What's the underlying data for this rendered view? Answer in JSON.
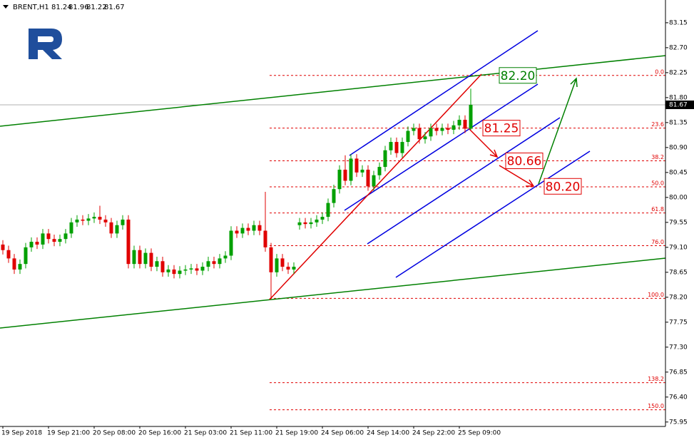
{
  "chart_data": {
    "type": "candlestick",
    "title": "BRENT,H1",
    "categories": [
      "19 Sep 2018",
      null,
      null,
      null,
      null,
      null,
      null,
      null,
      "19 Sep 21:00",
      null,
      null,
      null,
      null,
      null,
      null,
      null,
      "20 Sep 08:00",
      null,
      null,
      null,
      null,
      null,
      null,
      null,
      "20 Sep 16:00",
      null,
      null,
      null,
      null,
      null,
      null,
      null,
      "21 Sep 03:00",
      null,
      null,
      null,
      null,
      null,
      null,
      null,
      "21 Sep 11:00",
      null,
      null,
      null,
      null,
      null,
      null,
      null,
      "21 Sep 19:00",
      null,
      null,
      null,
      null,
      null,
      null,
      null,
      "24 Sep 06:00",
      null,
      null,
      null,
      null,
      null,
      null,
      null,
      "24 Sep 14:00",
      null,
      null,
      null,
      null,
      null,
      null,
      null,
      "24 Sep 22:00",
      null,
      null,
      null,
      null,
      null,
      null,
      null,
      "25 Sep 09:00",
      null,
      null
    ],
    "open": [
      79.15,
      79.05,
      78.9,
      78.7,
      78.8,
      79.1,
      79.2,
      79.15,
      79.35,
      79.25,
      79.2,
      79.25,
      79.35,
      79.55,
      79.6,
      79.58,
      79.62,
      79.65,
      79.6,
      79.55,
      79.35,
      79.5,
      79.6,
      78.8,
      79.05,
      78.8,
      79.0,
      78.75,
      78.85,
      78.65,
      78.7,
      78.62,
      78.68,
      78.7,
      78.72,
      78.68,
      78.75,
      78.85,
      78.8,
      78.9,
      78.95,
      79.4,
      79.35,
      79.45,
      79.4,
      79.5,
      79.4,
      79.1,
      78.65,
      78.9,
      78.75,
      78.7,
      79.5,
      79.55,
      79.52,
      79.55,
      79.6,
      79.65,
      79.9,
      80.15,
      80.5,
      80.3,
      80.7,
      80.45,
      80.5,
      80.2,
      80.4,
      80.55,
      80.85,
      81.0,
      80.8,
      81.0,
      81.2,
      81.25,
      81.05,
      81.1,
      81.25,
      81.2,
      81.25,
      81.22,
      81.3,
      81.4,
      81.24
    ],
    "high": [
      79.23,
      79.13,
      78.98,
      78.88,
      79.18,
      79.28,
      79.28,
      79.43,
      79.43,
      79.33,
      79.33,
      79.43,
      79.63,
      79.68,
      79.68,
      79.7,
      79.73,
      79.85,
      79.68,
      79.63,
      79.58,
      79.68,
      79.68,
      79.13,
      79.13,
      79.08,
      79.08,
      78.93,
      78.93,
      78.78,
      78.78,
      78.76,
      78.78,
      78.8,
      78.8,
      78.83,
      78.93,
      78.93,
      78.98,
      79.03,
      79.48,
      79.48,
      79.53,
      79.53,
      79.58,
      79.58,
      80.1,
      79.18,
      78.98,
      78.98,
      78.83,
      78.83,
      79.63,
      79.63,
      79.63,
      79.68,
      79.73,
      79.98,
      80.23,
      80.58,
      80.76,
      80.78,
      80.78,
      80.58,
      80.58,
      80.48,
      80.63,
      80.93,
      81.08,
      81.08,
      81.08,
      81.28,
      81.33,
      81.33,
      81.18,
      81.33,
      81.33,
      81.33,
      81.33,
      81.38,
      81.48,
      81.48,
      81.96
    ],
    "low": [
      78.97,
      78.82,
      78.62,
      78.62,
      78.72,
      79.02,
      79.07,
      79.07,
      79.17,
      79.12,
      79.12,
      79.17,
      79.27,
      79.47,
      79.5,
      79.5,
      79.54,
      79.52,
      79.47,
      79.27,
      79.27,
      79.42,
      78.72,
      78.72,
      78.72,
      78.72,
      78.67,
      78.67,
      78.57,
      78.57,
      78.54,
      78.54,
      78.6,
      78.62,
      78.6,
      78.6,
      78.67,
      78.72,
      78.72,
      78.82,
      78.87,
      79.27,
      79.27,
      79.32,
      79.32,
      79.32,
      79.02,
      78.18,
      78.57,
      78.67,
      78.62,
      78.62,
      79.42,
      79.44,
      79.44,
      79.47,
      79.52,
      79.57,
      79.82,
      80.07,
      80.22,
      80.22,
      80.37,
      80.37,
      80.12,
      80.12,
      80.32,
      80.47,
      80.77,
      80.72,
      80.72,
      80.92,
      81.12,
      80.97,
      80.97,
      81.02,
      81.12,
      81.12,
      81.14,
      81.14,
      81.22,
      81.16,
      81.22
    ],
    "close": [
      79.05,
      78.9,
      78.7,
      78.8,
      79.1,
      79.2,
      79.15,
      79.35,
      79.25,
      79.2,
      79.25,
      79.35,
      79.55,
      79.6,
      79.58,
      79.62,
      79.65,
      79.6,
      79.55,
      79.35,
      79.5,
      79.6,
      78.8,
      79.05,
      78.8,
      79.0,
      78.75,
      78.85,
      78.65,
      78.7,
      78.62,
      78.68,
      78.7,
      78.72,
      78.68,
      78.75,
      78.85,
      78.8,
      78.9,
      78.95,
      79.4,
      79.35,
      79.45,
      79.4,
      79.5,
      79.4,
      79.1,
      78.65,
      78.9,
      78.75,
      78.7,
      78.75,
      79.55,
      79.52,
      79.55,
      79.6,
      79.65,
      79.9,
      80.15,
      80.5,
      80.3,
      80.7,
      80.45,
      80.5,
      80.2,
      80.4,
      80.55,
      80.85,
      81.0,
      80.8,
      81.0,
      81.2,
      81.25,
      81.05,
      81.1,
      81.25,
      81.2,
      81.25,
      81.22,
      81.3,
      81.4,
      81.24,
      81.67
    ],
    "up_color": "#00a000",
    "down_color": "#e00000",
    "ylim": [
      75.87,
      83.56
    ],
    "yticks": [
      83.15,
      {
        "value": 82.7,
        "label": "82.70"
      },
      82.25,
      {
        "value": 81.8,
        "label": "81.80"
      },
      81.35,
      {
        "value": 80.9,
        "label": "80.90"
      },
      80.45,
      {
        "value": 80.0,
        "label": "80.00"
      },
      79.55,
      {
        "value": 79.1,
        "label": "79.10"
      },
      78.65,
      {
        "value": 78.2,
        "label": "78.20"
      },
      77.75,
      {
        "value": 77.3,
        "label": "77.30"
      },
      76.85,
      {
        "value": 76.4,
        "label": "76.40"
      },
      75.95
    ],
    "current_price": 81.67,
    "fib_color": "#e00000",
    "fib_levels": [
      {
        "value": 82.2,
        "label": "0.0"
      },
      {
        "value": 81.25,
        "label": "23.6"
      },
      {
        "value": 80.66,
        "label": "38.2"
      },
      {
        "value": 80.19,
        "label": "50.0"
      },
      {
        "value": 79.72,
        "label": "61.8"
      },
      {
        "value": 79.13,
        "label": "76.0"
      },
      {
        "value": 78.18,
        "label": "100.0"
      },
      {
        "value": 76.66,
        "label": "138.2"
      },
      {
        "value": 76.17,
        "label": "150.0"
      }
    ],
    "annotations": [
      {
        "value": 82.2,
        "label": "82.20",
        "color": "#008000"
      },
      {
        "value": 81.25,
        "label": "81.25",
        "color": "#e00000"
      },
      {
        "value": 80.66,
        "label": "80.66",
        "color": "#e00000"
      },
      {
        "value": 80.2,
        "label": "80.20",
        "color": "#e00000"
      }
    ]
  }
}
